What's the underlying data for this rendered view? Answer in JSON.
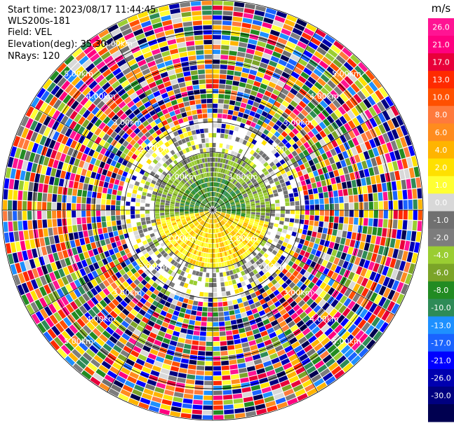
{
  "info": {
    "start_time": "Start time: 2023/08/17 11:44:45",
    "instrument": "WLS200s-181",
    "field": "Field: VEL",
    "elevation": "Elevation(deg): 35.30",
    "nrays": "NRays: 120"
  },
  "chart_data": {
    "type": "heatmap",
    "projection": "polar (PPI)",
    "colorbar": {
      "unit": "m/s",
      "ticks": [
        "26.0",
        "21.0",
        "17.0",
        "13.0",
        "10.0",
        "8.0",
        "6.0",
        "4.0",
        "2.0",
        "1.0",
        "0.0",
        "-1.0",
        "-2.0",
        "-4.0",
        "-6.0",
        "-8.0",
        "-10.0",
        "-13.0",
        "-17.0",
        "-21.0",
        "-26.0",
        "-30.0"
      ],
      "colors": [
        "#ff1493",
        "#ff007f",
        "#e8003a",
        "#ff2a00",
        "#ff5000",
        "#ff7a3c",
        "#ff8c1e",
        "#ffb400",
        "#ffe000",
        "#ffff33",
        "#d8d8d8",
        "#707070",
        "#7d7d7d",
        "#9acd32",
        "#7ba428",
        "#228b22",
        "#2e8b57",
        "#1e90ff",
        "#1a63ff",
        "#0000ff",
        "#0000b0",
        "#000080",
        "#000050"
      ]
    },
    "range_labels": [
      {
        "text": "1.00km",
        "angle_deg": -45
      },
      {
        "text": "1.00km",
        "angle_deg": 45
      },
      {
        "text": "1.00km",
        "angle_deg": -135
      },
      {
        "text": "1.00km",
        "angle_deg": 135
      },
      {
        "text": "2.00km",
        "angle_deg": -135
      },
      {
        "text": "2.00km",
        "angle_deg": -45
      },
      {
        "text": "2.00km",
        "angle_deg": 45
      },
      {
        "text": "2.00km",
        "angle_deg": 135
      },
      {
        "text": "3.00km",
        "angle_deg": -135
      },
      {
        "text": "3.00km",
        "angle_deg": -45
      },
      {
        "text": "3.00km",
        "angle_deg": 45
      },
      {
        "text": "3.00km",
        "angle_deg": 135
      },
      {
        "text": "4.00km",
        "angle_deg": -135
      },
      {
        "text": "4.00km",
        "angle_deg": -45
      },
      {
        "text": "4.00km",
        "angle_deg": 45
      },
      {
        "text": "4.00km",
        "angle_deg": 135
      },
      {
        "text": "5.00km",
        "angle_deg": -135
      },
      {
        "text": "5.00km",
        "angle_deg": -45
      },
      {
        "text": "5.00km",
        "angle_deg": 45
      },
      {
        "text": "5.00km",
        "angle_deg": 135
      },
      {
        "text": "5.00km",
        "angle_deg": -120
      }
    ],
    "range_rings_km": [
      1,
      2,
      3,
      4,
      5
    ],
    "azimuth_lines_deg": [
      0,
      30,
      60,
      90,
      120,
      150,
      180,
      210,
      240,
      270,
      300,
      330
    ]
  }
}
